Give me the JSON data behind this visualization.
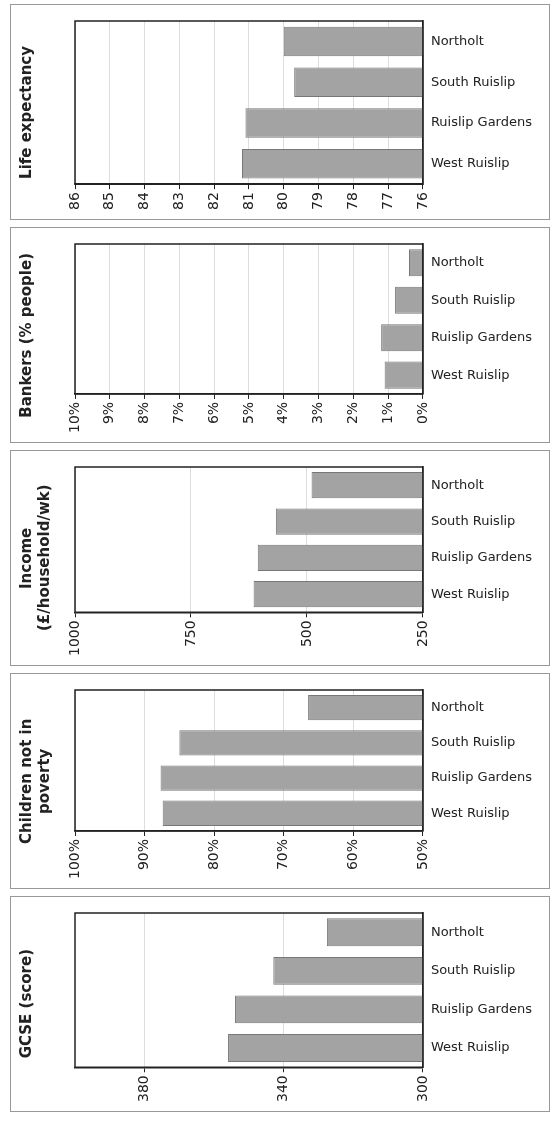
{
  "chart_data": [
    {
      "type": "bar",
      "orientation": "horizontal",
      "title": "Life expectancy",
      "categories": [
        "Northolt",
        "South Ruislip",
        "Ruislip Gardens",
        "West Ruislip"
      ],
      "values": [
        80.0,
        79.7,
        81.1,
        81.2
      ],
      "color": "#a3a3a3",
      "xlim": [
        86,
        76
      ],
      "xticks": [
        86,
        85,
        84,
        83,
        82,
        81,
        80,
        79,
        78,
        77,
        76
      ],
      "grid": "x"
    },
    {
      "type": "bar",
      "orientation": "horizontal",
      "title": "Bankers (% people)",
      "categories": [
        "Northolt",
        "South Ruislip",
        "Ruislip Gardens",
        "West Ruislip"
      ],
      "values": [
        0.4,
        0.8,
        1.2,
        1.1
      ],
      "color": "#a3a3a3",
      "xlim": [
        10,
        0
      ],
      "xticks": [
        {
          "value": 10,
          "label": "10%"
        },
        {
          "value": 9,
          "label": "9%"
        },
        {
          "value": 8,
          "label": "8%"
        },
        {
          "value": 7,
          "label": "7%"
        },
        {
          "value": 6,
          "label": "6%"
        },
        {
          "value": 5,
          "label": "5%"
        },
        {
          "value": 4,
          "label": "4%"
        },
        {
          "value": 3,
          "label": "3%"
        },
        {
          "value": 2,
          "label": "2%"
        },
        {
          "value": 1,
          "label": "1%"
        },
        {
          "value": 0,
          "label": "0%"
        }
      ],
      "grid": "x"
    },
    {
      "type": "bar",
      "orientation": "horizontal",
      "title": "Income (£/household/wk)",
      "categories": [
        "Northolt",
        "South Ruislip",
        "Ruislip Gardens",
        "West Ruislip"
      ],
      "values": [
        490,
        567,
        606,
        615
      ],
      "color": "#a3a3a3",
      "xlim": [
        1000,
        250
      ],
      "xticks": [
        1000,
        750,
        500,
        250
      ],
      "grid": "x"
    },
    {
      "type": "bar",
      "orientation": "horizontal",
      "title": "Children not in poverty",
      "categories": [
        "Northolt",
        "South Ruislip",
        "Ruislip Gardens",
        "West Ruislip"
      ],
      "values": [
        66.5,
        85,
        87.7,
        87.4
      ],
      "color": "#a3a3a3",
      "xlim": [
        100,
        50
      ],
      "xticks": [
        {
          "value": 100,
          "label": "100%"
        },
        {
          "value": 90,
          "label": "90%"
        },
        {
          "value": 80,
          "label": "80%"
        },
        {
          "value": 70,
          "label": "70%"
        },
        {
          "value": 60,
          "label": "60%"
        },
        {
          "value": 50,
          "label": "50%"
        }
      ],
      "grid": "x"
    },
    {
      "type": "bar",
      "orientation": "horizontal",
      "title": "GCSE (score)",
      "categories": [
        "Northolt",
        "South Ruislip",
        "Ruislip Gardens",
        "West Ruislip"
      ],
      "values": [
        327.6,
        343,
        354,
        356
      ],
      "color": "#a3a3a3",
      "xlim": [
        400,
        300
      ],
      "xticks": [
        380,
        340,
        300
      ],
      "grid": "x"
    }
  ]
}
